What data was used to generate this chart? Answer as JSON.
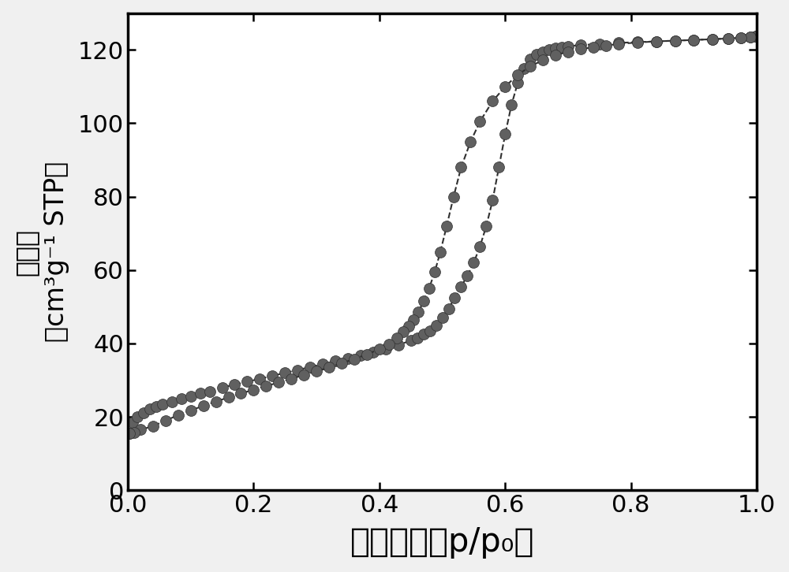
{
  "adsorption_x": [
    0.003,
    0.008,
    0.015,
    0.025,
    0.035,
    0.045,
    0.055,
    0.07,
    0.085,
    0.1,
    0.115,
    0.13,
    0.15,
    0.17,
    0.19,
    0.21,
    0.23,
    0.25,
    0.27,
    0.29,
    0.31,
    0.33,
    0.35,
    0.37,
    0.39,
    0.41,
    0.43,
    0.45,
    0.46,
    0.47,
    0.48,
    0.49,
    0.5,
    0.51,
    0.52,
    0.53,
    0.54,
    0.55,
    0.56,
    0.57,
    0.58,
    0.59,
    0.6,
    0.61,
    0.62,
    0.63,
    0.64,
    0.65,
    0.66,
    0.67,
    0.68,
    0.69,
    0.7,
    0.72,
    0.75,
    0.78,
    0.81,
    0.84,
    0.87,
    0.9,
    0.93,
    0.955,
    0.975,
    0.99,
    0.998
  ],
  "adsorption_y": [
    15.5,
    18.5,
    20.0,
    21.2,
    22.2,
    22.8,
    23.4,
    24.2,
    25.0,
    25.7,
    26.4,
    27.0,
    28.0,
    28.8,
    29.6,
    30.4,
    31.2,
    32.0,
    32.8,
    33.6,
    34.4,
    35.2,
    36.0,
    36.8,
    37.7,
    38.6,
    39.6,
    40.8,
    41.5,
    42.5,
    43.5,
    45.0,
    47.0,
    49.5,
    52.5,
    55.5,
    58.5,
    62.0,
    66.5,
    72.0,
    79.0,
    88.0,
    97.0,
    105.0,
    111.0,
    115.0,
    117.5,
    118.8,
    119.5,
    120.0,
    120.4,
    120.7,
    121.0,
    121.3,
    121.6,
    121.9,
    122.1,
    122.3,
    122.5,
    122.7,
    122.9,
    123.1,
    123.3,
    123.5,
    123.7
  ],
  "desorption_x": [
    0.998,
    0.99,
    0.975,
    0.955,
    0.93,
    0.9,
    0.87,
    0.84,
    0.81,
    0.78,
    0.76,
    0.74,
    0.72,
    0.7,
    0.68,
    0.66,
    0.64,
    0.62,
    0.6,
    0.58,
    0.56,
    0.545,
    0.53,
    0.518,
    0.507,
    0.497,
    0.488,
    0.479,
    0.47,
    0.462,
    0.454,
    0.446,
    0.438,
    0.428,
    0.415,
    0.4,
    0.38,
    0.36,
    0.34,
    0.32,
    0.3,
    0.28,
    0.26,
    0.24,
    0.22,
    0.2,
    0.18,
    0.16,
    0.14,
    0.12,
    0.1,
    0.08,
    0.06,
    0.04,
    0.02,
    0.01,
    0.003
  ],
  "desorption_y": [
    123.7,
    123.5,
    123.3,
    123.1,
    122.9,
    122.7,
    122.5,
    122.3,
    122.0,
    121.6,
    121.2,
    120.7,
    120.2,
    119.5,
    118.5,
    117.2,
    115.5,
    113.2,
    110.0,
    106.0,
    100.5,
    95.0,
    88.0,
    80.0,
    72.0,
    65.0,
    59.5,
    55.0,
    51.5,
    48.5,
    46.5,
    44.8,
    43.2,
    41.5,
    39.8,
    38.5,
    37.0,
    35.8,
    34.6,
    33.5,
    32.4,
    31.4,
    30.4,
    29.4,
    28.4,
    27.4,
    26.4,
    25.3,
    24.2,
    23.0,
    21.8,
    20.5,
    19.0,
    17.5,
    16.5,
    15.8,
    15.5
  ],
  "dot_color": "#606060",
  "dot_edge_color": "#303030",
  "line_color": "#303030",
  "bg_color": "#f0f0f0",
  "plot_bg_color": "#ffffff",
  "xlabel": "相对压力（p/p₀）",
  "ylabel_line1": "吸附量",
  "ylabel_line2": "（cm³g⁻¹ STP）",
  "xlim": [
    0.0,
    1.0
  ],
  "ylim": [
    0,
    130
  ],
  "yticks": [
    0,
    20,
    40,
    60,
    80,
    100,
    120
  ],
  "xticks": [
    0.0,
    0.2,
    0.4,
    0.6,
    0.8,
    1.0
  ],
  "xlabel_fontsize": 30,
  "ylabel_fontsize": 24,
  "tick_fontsize": 22,
  "marker_size": 10,
  "line_width": 1.5
}
